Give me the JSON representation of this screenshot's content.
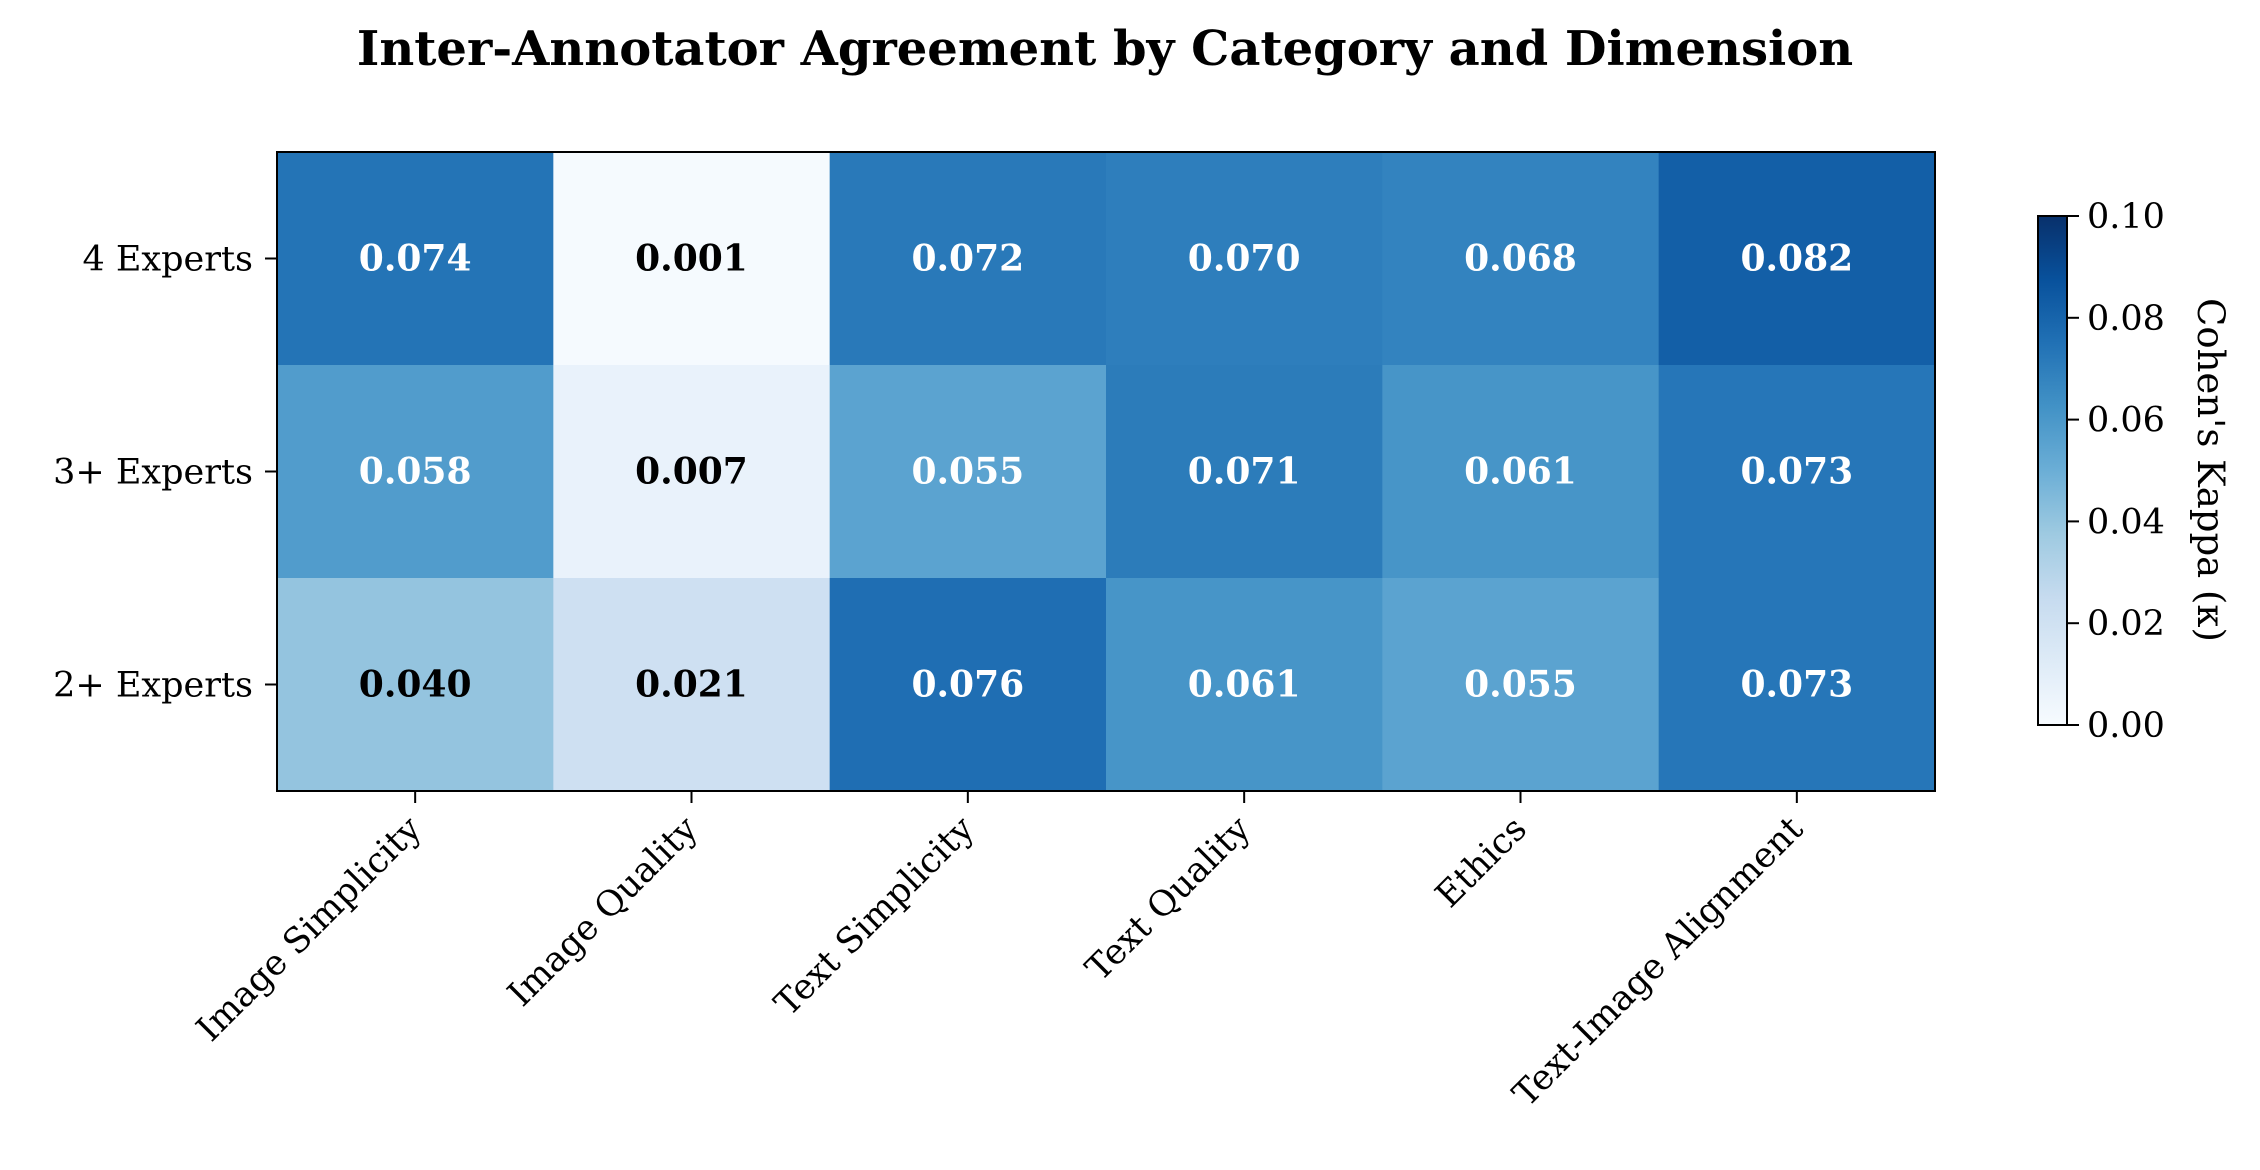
{
  "chart_data": {
    "type": "heatmap",
    "title": "Inter-Annotator Agreement by Category and Dimension",
    "rows": [
      "4 Experts",
      "3+ Experts",
      "2+ Experts"
    ],
    "columns": [
      "Image Simplicity",
      "Image Quality",
      "Text Simplicity",
      "Text Quality",
      "Ethics",
      "Text-Image Alignment"
    ],
    "values": [
      [
        0.074,
        0.001,
        0.072,
        0.07,
        0.068,
        0.082
      ],
      [
        0.058,
        0.007,
        0.055,
        0.071,
        0.061,
        0.073
      ],
      [
        0.04,
        0.021,
        0.076,
        0.061,
        0.055,
        0.073
      ]
    ],
    "value_labels": [
      [
        "0.074",
        "0.001",
        "0.072",
        "0.070",
        "0.068",
        "0.082"
      ],
      [
        "0.058",
        "0.007",
        "0.055",
        "0.071",
        "0.061",
        "0.073"
      ],
      [
        "0.040",
        "0.021",
        "0.076",
        "0.061",
        "0.055",
        "0.073"
      ]
    ],
    "colormap": "Blues",
    "vmin": 0.0,
    "vmax": 0.1,
    "colorbar": {
      "label": "Cohen's Kappa (κ)",
      "ticks": [
        0.0,
        0.02,
        0.04,
        0.06,
        0.08,
        0.1
      ],
      "tick_labels": [
        "0.00",
        "0.02",
        "0.04",
        "0.06",
        "0.08",
        "0.10"
      ]
    },
    "grid": false
  }
}
